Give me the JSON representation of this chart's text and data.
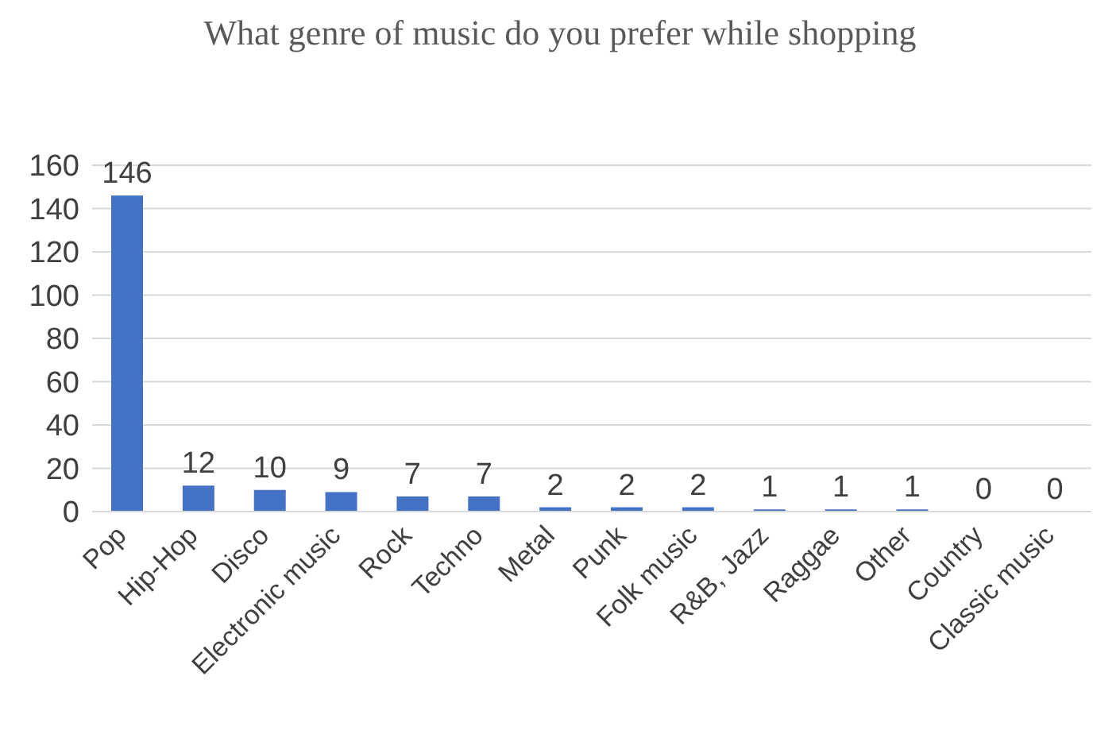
{
  "chart_data": {
    "type": "bar",
    "title": "What genre of music do you prefer while shopping",
    "categories": [
      "Pop",
      "Hip-Hop",
      "Disco",
      "Electronic music",
      "Rock",
      "Techno",
      "Metal",
      "Punk",
      "Folk music",
      "R&B, Jazz",
      "Raggae",
      "Other",
      "Country",
      "Classic music"
    ],
    "values": [
      146,
      12,
      10,
      9,
      7,
      7,
      2,
      2,
      2,
      1,
      1,
      1,
      0,
      0
    ],
    "color": "#4472c4",
    "ylim": [
      0,
      160
    ],
    "yticks": [
      0,
      20,
      40,
      60,
      80,
      100,
      120,
      140,
      160
    ],
    "grid": "y",
    "data_labels": true,
    "legend": false
  }
}
